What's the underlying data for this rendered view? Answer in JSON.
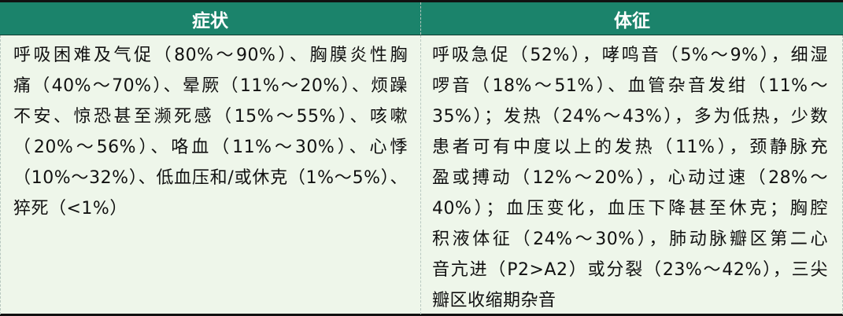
{
  "table": {
    "headers": [
      "症状",
      "体征"
    ],
    "symptoms_lines": [
      "呼吸困难及气促（80%～90%）、胸膜炎性胸",
      "痛（40%～70%）、晕厥（11%～20%）、烦躁",
      "不安、惊恐甚至濒死感（15%～55%）、咳嗽",
      "（20%～56%）、咯血（11%～30%）、心悸",
      "（10%～32%）、低血压和/或休克（1%～5%）、",
      "猝死（<1%）"
    ],
    "signs_lines": [
      "呼吸急促（52%），哮鸣音（5%～9%），细湿",
      "啰音（18%～51%）、血管杂音发绀（11%～",
      "35%）；发热（24%～43%），多为低热，少数",
      "患者可有中度以上的发热（11%），颈静脉充",
      "盈或搏动（12%～20%），心动过速（28%～",
      "40%）；血压变化，血压下降甚至休克；胸腔",
      "积液体征（24%～30%），肺动脉瓣区第二心",
      "音亢进（P2>A2）或分裂（23%～42%），三尖",
      "瓣区收缩期杂音"
    ],
    "colors": {
      "header_bg": "#1b836b",
      "body_bg": "#eef6ea",
      "header_text": "#ffffff"
    }
  }
}
